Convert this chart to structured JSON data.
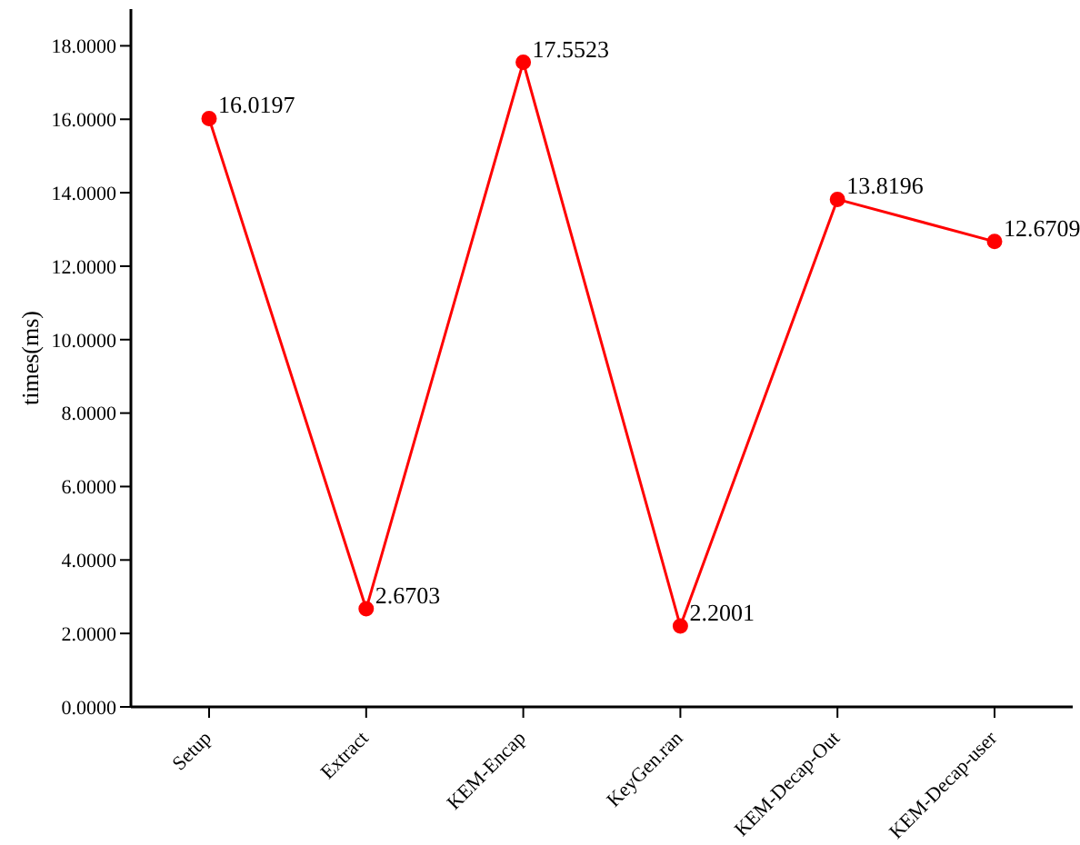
{
  "chart_data": {
    "type": "line",
    "ylabel": "times(ms)",
    "categories": [
      "Setup",
      "Extract",
      "KEM-Encap",
      "KeyGen.ran",
      "KEM-Decap-Out",
      "KEM-Decap-user"
    ],
    "series": [
      {
        "color": "#ff0000",
        "values": [
          16.0197,
          2.6703,
          17.5523,
          2.2001,
          13.8196,
          12.6709
        ]
      }
    ],
    "ylim": [
      0,
      19
    ],
    "yticks": [
      {
        "value": 0,
        "label": "0.0000"
      },
      {
        "value": 2,
        "label": "2.0000"
      },
      {
        "value": 4,
        "label": "4.0000"
      },
      {
        "value": 6,
        "label": "6.0000"
      },
      {
        "value": 8,
        "label": "8.0000"
      },
      {
        "value": 10,
        "label": "10.0000"
      },
      {
        "value": 12,
        "label": "12.0000"
      },
      {
        "value": 14,
        "label": "14.0000"
      },
      {
        "value": 16,
        "label": "16.0000"
      },
      {
        "value": 18,
        "label": "18.0000"
      }
    ],
    "data_labels": true,
    "marker": "circle",
    "line_style": "solid",
    "grid": false,
    "legend": false
  }
}
